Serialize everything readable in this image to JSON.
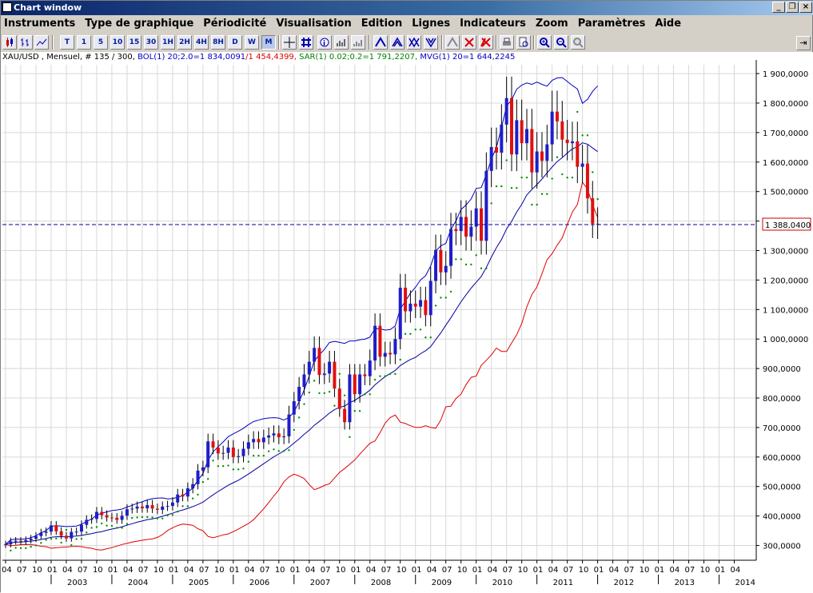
{
  "window": {
    "title": "Chart window",
    "cap_min": "_",
    "cap_restore": "❐",
    "cap_close": "×"
  },
  "menu": [
    "Instruments",
    "Type de graphique",
    "Périodicité",
    "Visualisation",
    "Edition",
    "Lignes",
    "Indicateurs",
    "Zoom",
    "Paramètres",
    "Aide"
  ],
  "toolbar": {
    "periods": [
      "T",
      "1",
      "5",
      "10",
      "15",
      "30",
      "1H",
      "2H",
      "4H",
      "8H",
      "D",
      "W",
      "M"
    ],
    "active_period": "M"
  },
  "legend": {
    "symbol": "XAU/USD , Mensuel, # 135 / 300,",
    "bol": "BOL(1) 20;2.0=1 834,0091",
    "bol_lower": "/1 454,4399,",
    "sar": "SAR(1) 0.02;0.2=1 791,2207,",
    "mvg": "MVG(1) 20=1 644,2245"
  },
  "colors": {
    "bull": "#1e1ec8",
    "bear": "#e01010",
    "upper_band": "#0000c0",
    "middle": "#0000a0",
    "lower_band": "#e00000",
    "sar": "#009000",
    "price_line": "#0000a0",
    "price_box_text": "#0000c0"
  },
  "current_price_label": "1 388,0400",
  "chart_data": {
    "type": "candlestick",
    "instrument": "XAU/USD",
    "period": "Mensuel",
    "ylim": [
      250,
      1930
    ],
    "yticks": [
      300,
      400,
      500,
      600,
      700,
      800,
      900,
      1000,
      1100,
      1200,
      1300,
      1400,
      1500,
      1600,
      1700,
      1800,
      1900
    ],
    "ytick_labels": [
      "300,0000",
      "400,0000",
      "500,0000",
      "600,0000",
      "700,0000",
      "800,0000",
      "900,0000",
      "1 000,0000",
      "1 100,0000",
      "1 200,0000",
      "1 300,0000",
      "1 400,0000",
      "1 500,0000",
      "1 600,0000",
      "1 700,0000",
      "1 800,0000",
      "1 900,0000"
    ],
    "x_month_labels": [
      "04",
      "07",
      "10",
      "01",
      "04",
      "07",
      "10",
      "01",
      "04",
      "07",
      "10",
      "01",
      "04",
      "07",
      "10",
      "01",
      "04",
      "07",
      "10",
      "01",
      "04",
      "07",
      "10",
      "01",
      "04",
      "07",
      "10",
      "01",
      "04",
      "07",
      "10",
      "01",
      "04",
      "07",
      "10",
      "01",
      "04",
      "07",
      "10",
      "01",
      "04",
      "07",
      "10",
      "01",
      "04",
      "07",
      "10",
      "01",
      "04"
    ],
    "x_year_labels": [
      "2003",
      "2004",
      "2005",
      "2006",
      "2007",
      "2008",
      "2009",
      "2010",
      "2011",
      "2012",
      "2013",
      "2014"
    ],
    "first_month": "2002-04",
    "current_price": 1388.04,
    "closes": [
      304,
      314,
      316,
      313,
      318,
      323,
      332,
      343,
      347,
      368,
      348,
      333,
      324,
      346,
      347,
      370,
      387,
      390,
      414,
      403,
      395,
      394,
      387,
      401,
      423,
      425,
      432,
      426,
      437,
      425,
      421,
      432,
      434,
      446,
      473,
      466,
      494,
      508,
      554,
      565,
      653,
      632,
      612,
      614,
      632,
      600,
      603,
      628,
      650,
      661,
      650,
      666,
      673,
      680,
      667,
      670,
      744,
      789,
      838,
      880,
      923,
      970,
      878,
      883,
      923,
      832,
      763,
      718,
      880,
      813,
      880,
      874,
      927,
      1045,
      940,
      953,
      948,
      1000,
      1174,
      1094,
      1120,
      1110,
      1132,
      1081,
      1197,
      1302,
      1226,
      1248,
      1373,
      1366,
      1414,
      1347,
      1381,
      1443,
      1333,
      1570,
      1651,
      1632,
      1727,
      1817,
      1626,
      1742,
      1664,
      1712,
      1565,
      1636,
      1604,
      1660,
      1771,
      1738,
      1676,
      1664,
      1670,
      1584,
      1595,
      1477,
      1391,
      1388
    ],
    "opens": [
      302,
      304,
      314,
      316,
      313,
      318,
      323,
      332,
      343,
      347,
      368,
      348,
      333,
      324,
      346,
      347,
      370,
      387,
      390,
      414,
      403,
      395,
      394,
      387,
      401,
      423,
      425,
      432,
      426,
      437,
      425,
      421,
      432,
      434,
      446,
      473,
      466,
      494,
      508,
      554,
      565,
      653,
      632,
      612,
      614,
      632,
      600,
      603,
      628,
      650,
      661,
      650,
      666,
      673,
      680,
      667,
      670,
      744,
      789,
      838,
      880,
      923,
      970,
      878,
      883,
      923,
      832,
      763,
      718,
      880,
      813,
      880,
      874,
      927,
      1045,
      940,
      953,
      948,
      1000,
      1174,
      1094,
      1120,
      1110,
      1132,
      1081,
      1197,
      1302,
      1226,
      1248,
      1373,
      1366,
      1414,
      1347,
      1381,
      1443,
      1333,
      1570,
      1651,
      1632,
      1727,
      1817,
      1626,
      1742,
      1664,
      1712,
      1565,
      1636,
      1604,
      1660,
      1771,
      1738,
      1676,
      1664,
      1670,
      1584,
      1595,
      1477,
      1391
    ]
  }
}
